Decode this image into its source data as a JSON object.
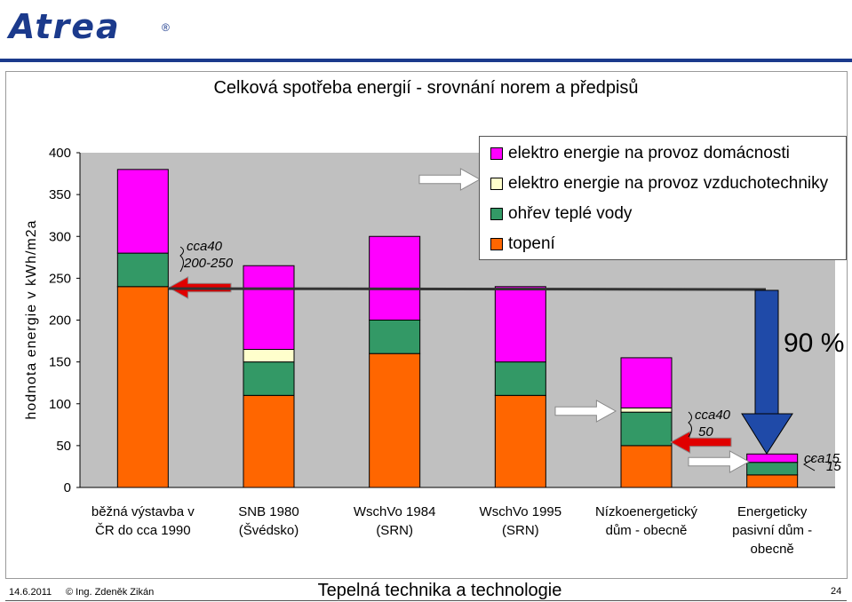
{
  "logo": {
    "text": "Atrea",
    "registered": "®"
  },
  "chart_data": {
    "type": "bar",
    "stacked": true,
    "title": "Celková spotřeba energií - srovnání norem a předpisů",
    "ylabel": "hodnota energie v kWh/m2a",
    "ylim": [
      0,
      400
    ],
    "yticks": [
      "0",
      "50",
      "100",
      "150",
      "200",
      "250",
      "300",
      "350",
      "400"
    ],
    "categories": [
      [
        "běžná výstavba v",
        "ČR do cca 1990"
      ],
      [
        "SNB 1980",
        "(Švédsko)"
      ],
      [
        "WschVo 1984",
        "(SRN)"
      ],
      [
        "WschVo 1995",
        "(SRN)"
      ],
      [
        "Nízkoenergetický",
        "dům - obecně"
      ],
      [
        "Energeticky",
        "pasivní dům -",
        "obecně"
      ]
    ],
    "series": [
      {
        "name": "topení",
        "color": "#ff6600",
        "values": [
          240,
          110,
          160,
          110,
          50,
          15
        ]
      },
      {
        "name": "ohřev teplé vody",
        "color": "#339966",
        "values": [
          40,
          40,
          40,
          40,
          40,
          15
        ]
      },
      {
        "name": "elektro energie na provoz vzduchotechniky",
        "color": "#ffffcc",
        "values": [
          0,
          15,
          0,
          0,
          5,
          0
        ]
      },
      {
        "name": "elektro energie na provoz domácnosti",
        "color": "#ff00ff",
        "values": [
          100,
          100,
          100,
          90,
          60,
          10
        ]
      }
    ],
    "legend_order": [
      3,
      2,
      1,
      0
    ],
    "legend_position": "top-right",
    "annotations": {
      "a1_line1": "cca40",
      "a1_line2": "200-250",
      "a2_line1": "cca40",
      "a2_line2": "50",
      "a3_line1": "cca15",
      "a3_line2": "15",
      "percent": "90 %"
    }
  },
  "colors": {
    "plot_bg": "#c0c0c0",
    "arrow_red": "#e00000",
    "arrow_green": "#339966",
    "arrow_blue": "#1f4aa8"
  },
  "footer": {
    "date": "14.6.2011",
    "author": "© Ing. Zdeněk Zikán",
    "title": "Tepelná technika a technologie",
    "page": "24"
  }
}
